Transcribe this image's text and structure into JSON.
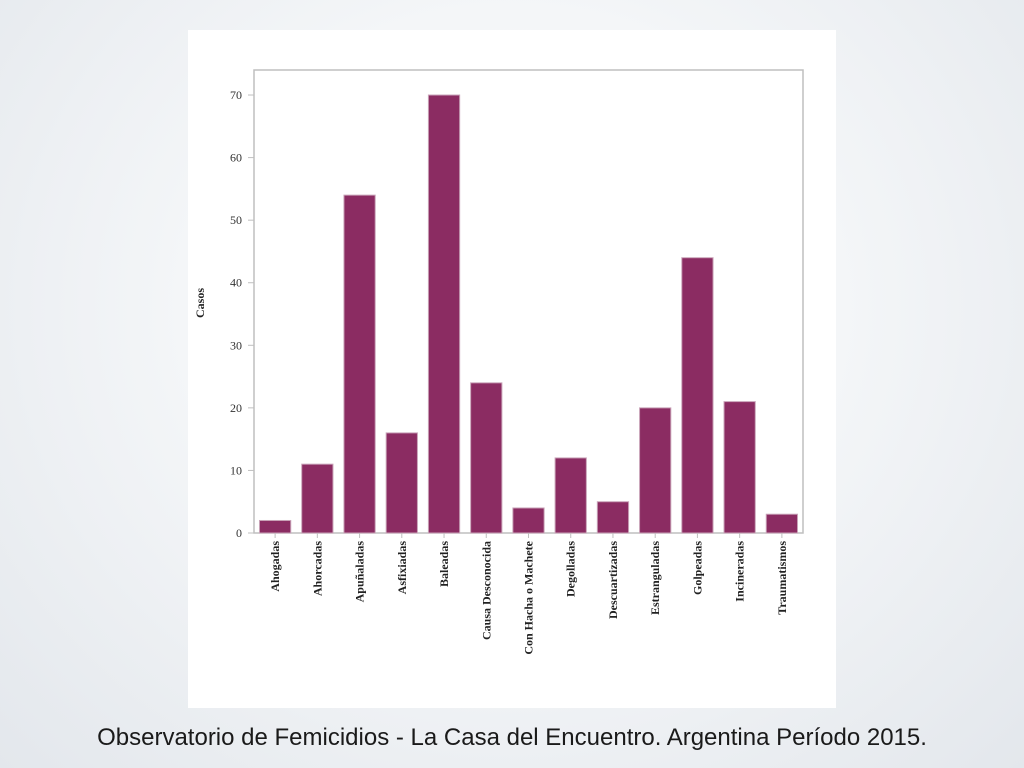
{
  "colors": {
    "bar_fill": "#8b2c62",
    "bar_stroke": "#c9a3b8",
    "axis": "#bfbfbf"
  },
  "caption": "Observatorio de Femicidios - La Casa del Encuentro.  Argentina Período 2015.",
  "chart_data": {
    "type": "bar",
    "ylabel": "Casos",
    "xlabel": "",
    "ylim": [
      0,
      74
    ],
    "yticks": [
      0,
      10,
      20,
      30,
      40,
      50,
      60,
      70
    ],
    "grid": false,
    "categories": [
      "Ahogadas",
      "Ahorcadas",
      "Apuñaladas",
      "Asfixiadas",
      "Baleadas",
      "Causa Desconocida",
      "Con Hacha o Machete",
      "Degolladas",
      "Descuartizadas",
      "Estranguladas",
      "Golpeadas",
      "Incineradas",
      "Traumatismos"
    ],
    "values": [
      2,
      11,
      54,
      16,
      70,
      24,
      4,
      12,
      5,
      20,
      44,
      21,
      3
    ]
  }
}
